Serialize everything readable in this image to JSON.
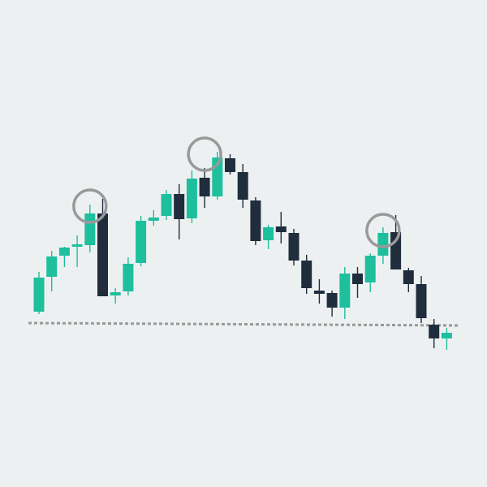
{
  "chart_data": {
    "type": "candlestick",
    "title": "",
    "xlabel": "",
    "ylabel": "",
    "ylim": [
      0,
      600
    ],
    "grid": false,
    "legend": "none",
    "colors": {
      "background": "#edf0f1",
      "up": "#1dbf9d",
      "down": "#1f2d3d",
      "marker": "#999999",
      "support_line": "#999999"
    },
    "candles": [
      {
        "o": 216,
        "h": 265,
        "l": 213,
        "c": 258
      },
      {
        "o": 259,
        "h": 291,
        "l": 241,
        "c": 284
      },
      {
        "o": 285,
        "h": 296,
        "l": 271,
        "c": 295
      },
      {
        "o": 297,
        "h": 310,
        "l": 271,
        "c": 299
      },
      {
        "o": 298,
        "h": 348,
        "l": 289,
        "c": 337
      },
      {
        "o": 337,
        "h": 355,
        "l": 235,
        "c": 235
      },
      {
        "o": 236,
        "h": 245,
        "l": 226,
        "c": 240
      },
      {
        "o": 241,
        "h": 283,
        "l": 236,
        "c": 275
      },
      {
        "o": 276,
        "h": 334,
        "l": 272,
        "c": 328
      },
      {
        "o": 328,
        "h": 341,
        "l": 322,
        "c": 332
      },
      {
        "o": 334,
        "h": 366,
        "l": 329,
        "c": 361
      },
      {
        "o": 361,
        "h": 373,
        "l": 305,
        "c": 330
      },
      {
        "o": 331,
        "h": 390,
        "l": 325,
        "c": 380
      },
      {
        "o": 381,
        "h": 393,
        "l": 344,
        "c": 358
      },
      {
        "o": 358,
        "h": 413,
        "l": 354,
        "c": 406
      },
      {
        "o": 405,
        "h": 410,
        "l": 385,
        "c": 388
      },
      {
        "o": 388,
        "h": 398,
        "l": 344,
        "c": 354
      },
      {
        "o": 353,
        "h": 357,
        "l": 298,
        "c": 303
      },
      {
        "o": 304,
        "h": 323,
        "l": 293,
        "c": 320
      },
      {
        "o": 321,
        "h": 339,
        "l": 300,
        "c": 314
      },
      {
        "o": 313,
        "h": 318,
        "l": 273,
        "c": 279
      },
      {
        "o": 279,
        "h": 286,
        "l": 238,
        "c": 245
      },
      {
        "o": 242,
        "h": 256,
        "l": 226,
        "c": 238
      },
      {
        "o": 239,
        "h": 242,
        "l": 210,
        "c": 221
      },
      {
        "o": 221,
        "h": 271,
        "l": 207,
        "c": 263
      },
      {
        "o": 263,
        "h": 271,
        "l": 233,
        "c": 250
      },
      {
        "o": 252,
        "h": 288,
        "l": 240,
        "c": 285
      },
      {
        "o": 285,
        "h": 320,
        "l": 275,
        "c": 313
      },
      {
        "o": 314,
        "h": 335,
        "l": 268,
        "c": 268
      },
      {
        "o": 267,
        "h": 270,
        "l": 240,
        "c": 250
      },
      {
        "o": 250,
        "h": 260,
        "l": 202,
        "c": 208
      },
      {
        "o": 200,
        "h": 207,
        "l": 171,
        "c": 183
      },
      {
        "o": 183,
        "h": 196,
        "l": 169,
        "c": 190
      }
    ],
    "markers": [
      {
        "label": "left-shoulder",
        "candle": 4,
        "y": 346
      },
      {
        "label": "head",
        "candle": 13,
        "y": 410
      },
      {
        "label": "right-shoulder",
        "candle": 27,
        "y": 316
      }
    ],
    "support_line": {
      "y_start": 202,
      "y_end": 199
    }
  }
}
